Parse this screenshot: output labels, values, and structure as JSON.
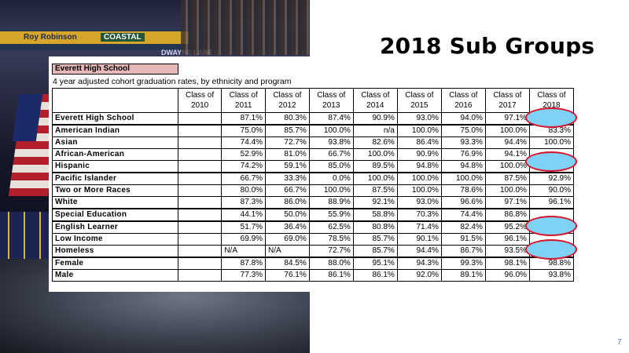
{
  "slide": {
    "title": "2018 Sub Groups",
    "page_number": "7"
  },
  "photo": {
    "banner_names": [
      "Roy Robinson",
      "COASTAL",
      "DWAYNE LANE"
    ]
  },
  "table": {
    "school_label": "Everett High School",
    "subtitle": "4 year adjusted cohort graduation rates, by ethnicity and program",
    "columns": [
      "Class of 2010",
      "Class of 2011",
      "Class of 2012",
      "Class of 2013",
      "Class of 2014",
      "Class of 2015",
      "Class of 2016",
      "Class of 2017",
      "Class of 2018"
    ],
    "rows": [
      {
        "label": "Everett High School",
        "values": [
          "",
          "87.1%",
          "80.3%",
          "87.4%",
          "90.9%",
          "93.0%",
          "94.0%",
          "97.1%",
          ""
        ]
      },
      {
        "label": "American Indian",
        "values": [
          "",
          "75.0%",
          "85.7%",
          "100.0%",
          "n/a",
          "100.0%",
          "75.0%",
          "100.0%",
          "83.3%"
        ]
      },
      {
        "label": "Asian",
        "values": [
          "",
          "74.4%",
          "72.7%",
          "93.8%",
          "82.6%",
          "86.4%",
          "93.3%",
          "94.4%",
          "100.0%"
        ]
      },
      {
        "label": "African-American",
        "values": [
          "",
          "52.9%",
          "81.0%",
          "66.7%",
          "100.0%",
          "90.9%",
          "76.9%",
          "94.1%",
          ""
        ]
      },
      {
        "label": "Hispanic",
        "values": [
          "",
          "74.2%",
          "59.1%",
          "85.0%",
          "89.5%",
          "94.8%",
          "94.8%",
          "100.0%",
          ""
        ]
      },
      {
        "label": "Pacific Islander",
        "values": [
          "",
          "66.7%",
          "33.3%",
          "0.0%",
          "100.0%",
          "100.0%",
          "100.0%",
          "87.5%",
          "92.9%"
        ]
      },
      {
        "label": "Two or More Races",
        "values": [
          "",
          "80.0%",
          "66.7%",
          "100.0%",
          "87.5%",
          "100.0%",
          "78.6%",
          "100.0%",
          "90.0%"
        ]
      },
      {
        "label": "White",
        "values": [
          "",
          "87.3%",
          "86.0%",
          "88.9%",
          "92.1%",
          "93.0%",
          "96.6%",
          "97.1%",
          "96.1%"
        ]
      },
      {
        "label": "Special Education",
        "values": [
          "",
          "44.1%",
          "50.0%",
          "55.9%",
          "58.8%",
          "70.3%",
          "74.4%",
          "86.8%",
          ""
        ]
      },
      {
        "label": "English Learner",
        "values": [
          "",
          "51.7%",
          "36.4%",
          "62.5%",
          "80.8%",
          "71.4%",
          "82.4%",
          "95.2%",
          ""
        ]
      },
      {
        "label": "Low Income",
        "values": [
          "",
          "69.9%",
          "69.0%",
          "78.5%",
          "85.7%",
          "90.1%",
          "91.5%",
          "96.1%",
          ""
        ]
      },
      {
        "label": "Homeless",
        "values": [
          "",
          "N/A",
          "N/A",
          "72.7%",
          "85.7%",
          "94.4%",
          "86.7%",
          "93.5%",
          ""
        ]
      },
      {
        "label": "Female",
        "values": [
          "",
          "87.8%",
          "84.5%",
          "88.0%",
          "95.1%",
          "94.3%",
          "99.3%",
          "98.1%",
          "98.8%"
        ]
      },
      {
        "label": "Male",
        "values": [
          "",
          "77.3%",
          "76.1%",
          "86.1%",
          "86.1%",
          "92.0%",
          "89.1%",
          "96.0%",
          "93.8%"
        ]
      }
    ]
  },
  "colors": {
    "school_label_bg": "#e6b9b8",
    "highlight_fill": "#7fd1f5",
    "highlight_border": "#d9132b",
    "page_number": "#4a7fbf"
  }
}
